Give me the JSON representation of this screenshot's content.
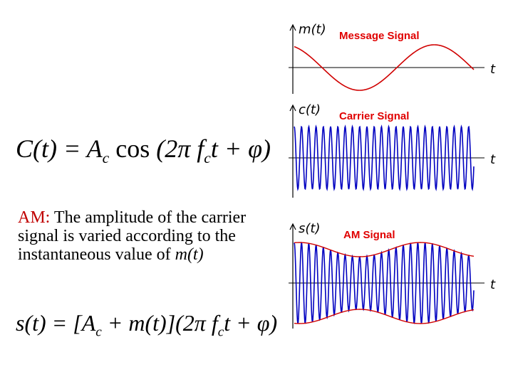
{
  "formula_carrier": {
    "parts": [
      "C(t) = A",
      "c",
      "cos",
      "(2π f",
      "c",
      "t + φ)"
    ]
  },
  "paragraph": {
    "label": "AM:",
    "text": "The amplitude of the carrier signal is varied according to the instantaneous value of",
    "term": "m(t)"
  },
  "formula_am": {
    "parts": [
      "s(t) = [A",
      "c",
      "+ m(t)](2π f",
      "c",
      "t + φ)"
    ]
  },
  "plots": [
    {
      "axis_label": "m(t)",
      "title": "Message Signal",
      "time_label": "t"
    },
    {
      "axis_label": "c(t)",
      "title": "Carrier Signal",
      "time_label": "t"
    },
    {
      "axis_label": "s(t)",
      "title": "AM Signal",
      "time_label": "t"
    }
  ]
}
